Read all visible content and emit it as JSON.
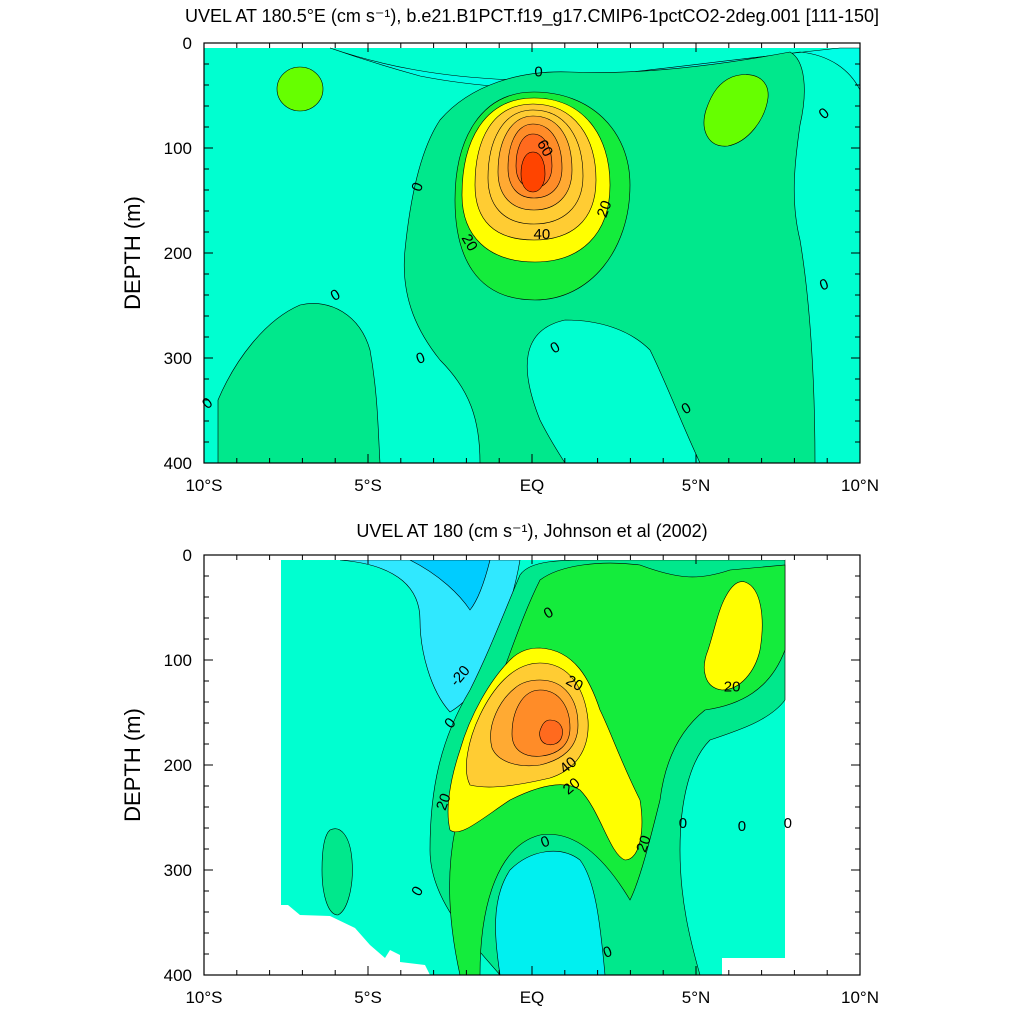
{
  "chart_data": [
    {
      "type": "contour",
      "title": "UVEL AT 180.5°E (cm s⁻¹), b.e21.B1PCT.f19_g17.CMIP6-1pctCO2-2deg.001 [111-150]",
      "ylabel": "DEPTH (m)",
      "xlabel": "",
      "xlim": [
        -10,
        10
      ],
      "ylim": [
        0,
        400
      ],
      "y_reversed": true,
      "x_ticks": [
        {
          "value": -10,
          "label": "10°S"
        },
        {
          "value": -5,
          "label": "5°S"
        },
        {
          "value": 0,
          "label": "EQ"
        },
        {
          "value": 5,
          "label": "5°N"
        },
        {
          "value": 10,
          "label": "10°N"
        }
      ],
      "y_ticks": [
        {
          "value": 0,
          "label": "0"
        },
        {
          "value": 100,
          "label": "100"
        },
        {
          "value": 200,
          "label": "200"
        },
        {
          "value": 300,
          "label": "300"
        },
        {
          "value": 400,
          "label": "400"
        }
      ],
      "contour_interval": 10,
      "core": {
        "lat": 0.0,
        "depth": 125,
        "max_value": 85
      },
      "contour_labels": [
        {
          "lat": 0.2,
          "depth": 27,
          "value": "0",
          "rotate": 0
        },
        {
          "lat": 0.4,
          "depth": 100,
          "value": "60",
          "rotate": 60
        },
        {
          "lat": 2.2,
          "depth": 158,
          "value": "20",
          "rotate": -70
        },
        {
          "lat": 0.3,
          "depth": 182,
          "value": "40",
          "rotate": 0
        },
        {
          "lat": -1.9,
          "depth": 190,
          "value": "20",
          "rotate": 60
        },
        {
          "lat": -3.5,
          "depth": 137,
          "value": "0",
          "rotate": -70
        },
        {
          "lat": -6.0,
          "depth": 240,
          "value": "0",
          "rotate": -30
        },
        {
          "lat": -3.4,
          "depth": 300,
          "value": "0",
          "rotate": -20
        },
        {
          "lat": 0.7,
          "depth": 290,
          "value": "0",
          "rotate": -30
        },
        {
          "lat": 4.7,
          "depth": 348,
          "value": "0",
          "rotate": -30
        },
        {
          "lat": 8.9,
          "depth": 230,
          "value": "0",
          "rotate": -20
        },
        {
          "lat": 8.9,
          "depth": 67,
          "value": "0",
          "rotate": -40
        },
        {
          "lat": -9.9,
          "depth": 343,
          "value": "0",
          "rotate": -40
        }
      ]
    },
    {
      "type": "contour",
      "title": "UVEL AT 180 (cm s⁻¹), Johnson et al (2002)",
      "ylabel": "DEPTH (m)",
      "xlabel": "",
      "xlim": [
        -10,
        10
      ],
      "ylim": [
        0,
        400
      ],
      "y_reversed": true,
      "x_ticks": [
        {
          "value": -10,
          "label": "10°S"
        },
        {
          "value": -5,
          "label": "5°S"
        },
        {
          "value": 0,
          "label": "EQ"
        },
        {
          "value": 5,
          "label": "5°N"
        },
        {
          "value": 10,
          "label": "10°N"
        }
      ],
      "y_ticks": [
        {
          "value": 0,
          "label": "0"
        },
        {
          "value": 100,
          "label": "100"
        },
        {
          "value": 200,
          "label": "200"
        },
        {
          "value": 300,
          "label": "300"
        },
        {
          "value": 400,
          "label": "400"
        }
      ],
      "contour_interval": 10,
      "data_extent": {
        "lat_min": -8,
        "lat_max": 8
      },
      "core": {
        "lat": 0.8,
        "depth": 170,
        "max_value": 60
      },
      "contour_labels": [
        {
          "lat": 0.5,
          "depth": 55,
          "value": "0",
          "rotate": -30
        },
        {
          "lat": -2.2,
          "depth": 115,
          "value": "-20",
          "rotate": -50
        },
        {
          "lat": 1.3,
          "depth": 122,
          "value": "20",
          "rotate": 30
        },
        {
          "lat": -2.5,
          "depth": 160,
          "value": "0",
          "rotate": -50
        },
        {
          "lat": 1.1,
          "depth": 200,
          "value": "40",
          "rotate": -40
        },
        {
          "lat": 1.2,
          "depth": 220,
          "value": "20",
          "rotate": -40
        },
        {
          "lat": -2.7,
          "depth": 235,
          "value": "20",
          "rotate": -70
        },
        {
          "lat": 3.4,
          "depth": 275,
          "value": "20",
          "rotate": -70
        },
        {
          "lat": 0.4,
          "depth": 273,
          "value": "0",
          "rotate": -20
        },
        {
          "lat": 4.6,
          "depth": 255,
          "value": "0",
          "rotate": 0
        },
        {
          "lat": 6.4,
          "depth": 258,
          "value": "0",
          "rotate": 0
        },
        {
          "lat": 7.8,
          "depth": 255,
          "value": "0",
          "rotate": 0
        },
        {
          "lat": 6.1,
          "depth": 125,
          "value": "20",
          "rotate": 0
        },
        {
          "lat": -3.5,
          "depth": 320,
          "value": "0",
          "rotate": -60
        },
        {
          "lat": 2.3,
          "depth": 378,
          "value": "0",
          "rotate": -20
        }
      ]
    }
  ],
  "colors": {
    "neg30": "#00e4ff",
    "neg20": "#00f0f0",
    "neg10": "#30e8ff",
    "neg0": "#00ffd0",
    "pos0": "#00e88c",
    "pos10": "#14ec3c",
    "pos20": "#66ff00",
    "pos30": "#ffff00",
    "pos40": "#ffcc33",
    "pos50": "#ffaa33",
    "pos60": "#ff8c28",
    "pos70": "#ff6a1e",
    "pos80": "#ff4400"
  }
}
